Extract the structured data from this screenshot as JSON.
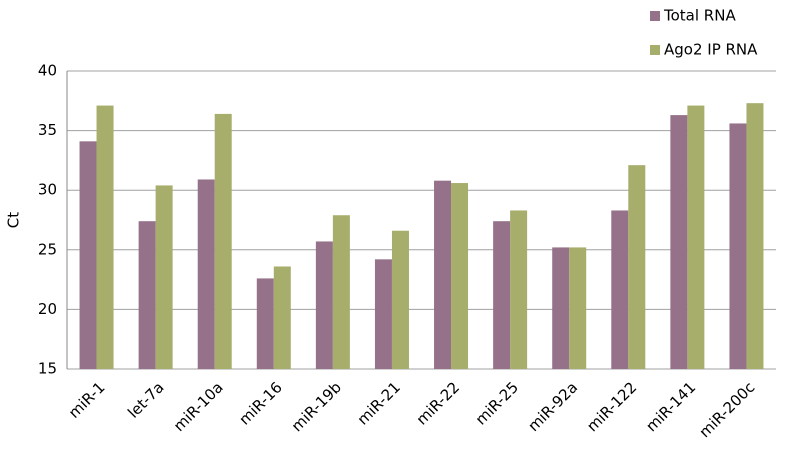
{
  "chart_data": {
    "type": "bar",
    "y_label": "Ct",
    "categories": [
      "miR-1",
      "let-7a",
      "miR-10a",
      "miR-16",
      "miR-19b",
      "miR-21",
      "miR-22",
      "miR-25",
      "miR-92a",
      "miR-122",
      "miR-141",
      "miR-200c"
    ],
    "category_label_colors": [
      "#000000",
      "#000000",
      "#000000",
      "#000000",
      "#000000",
      "#000000",
      "#1f4e9a",
      "#000000",
      "#1f4e9a",
      "#000000",
      "#000000",
      "#000000"
    ],
    "series": [
      {
        "name": "Total RNA",
        "color": "#957289",
        "values": [
          34.1,
          27.4,
          30.9,
          22.6,
          25.7,
          24.2,
          30.8,
          27.4,
          25.2,
          28.3,
          36.3,
          35.6
        ]
      },
      {
        "name": "Ago2 IP RNA",
        "color": "#a7ad6b",
        "values": [
          37.1,
          30.4,
          36.4,
          23.6,
          27.9,
          26.6,
          30.6,
          28.3,
          25.2,
          32.1,
          37.1,
          37.3
        ]
      }
    ],
    "ylim": [
      15,
      40
    ],
    "yticks": [
      15,
      20,
      25,
      30,
      35,
      40
    ],
    "grid": true,
    "legend": "top-right"
  }
}
